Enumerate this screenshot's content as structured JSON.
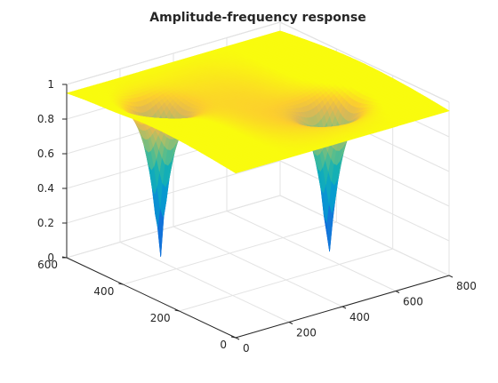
{
  "chart_data": {
    "type": "surface",
    "title": "Amplitude-frequency response",
    "xlabel": "",
    "ylabel": "",
    "zlabel": "",
    "grid": true,
    "colormap": "parula",
    "x_range": [
      0,
      800
    ],
    "y_range": [
      0,
      600
    ],
    "z_range": [
      0,
      1
    ],
    "x_ticks": [
      0,
      200,
      400,
      600,
      800
    ],
    "y_ticks": [
      0,
      200,
      400,
      600
    ],
    "z_ticks": [
      0,
      0.2,
      0.4,
      0.6,
      0.8,
      1
    ],
    "x_tick_labels": [
      "0",
      "200",
      "400",
      "600",
      "800"
    ],
    "y_tick_labels": [
      "0",
      "200",
      "400",
      "600"
    ],
    "z_tick_labels": [
      "0",
      "0.2",
      "0.4",
      "0.6",
      "0.8",
      "1"
    ],
    "notches": [
      {
        "x": 170,
        "y": 430,
        "min_z": 0.0
      },
      {
        "x": 560,
        "y": 200,
        "min_z": 0.0
      }
    ],
    "plateau_z": 0.95
  }
}
